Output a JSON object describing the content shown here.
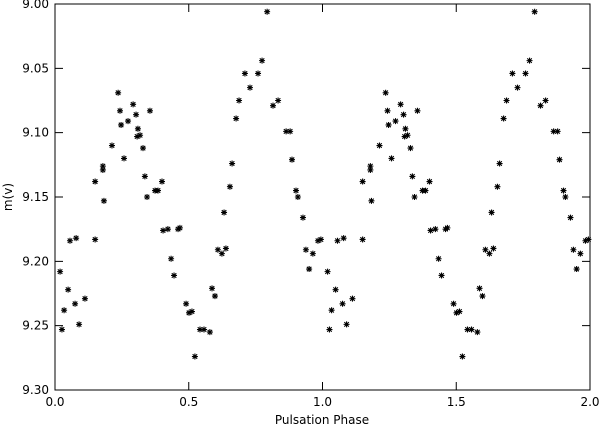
{
  "chart_data": {
    "type": "scatter",
    "x_label": "Pulsation Phase",
    "y_label": "m(v)",
    "color": "#000000",
    "xlim": [
      0,
      2
    ],
    "ylim": [
      9.3,
      9.0
    ],
    "xticks": [
      {
        "value": 0,
        "label": "0.0"
      },
      {
        "value": 0.5,
        "label": "0.5"
      },
      {
        "value": 1,
        "label": "1.0"
      },
      {
        "value": 1.5,
        "label": "1.5"
      },
      {
        "value": 2,
        "label": "2.0"
      }
    ],
    "yticks": [
      {
        "value": 9.0,
        "label": "9.00"
      },
      {
        "value": 9.05,
        "label": "9.05"
      },
      {
        "value": 9.1,
        "label": "9.10"
      },
      {
        "value": 9.15,
        "label": "9.15"
      },
      {
        "value": 9.2,
        "label": "9.20"
      },
      {
        "value": 9.25,
        "label": "9.25"
      },
      {
        "value": 9.3,
        "label": "9.30"
      }
    ],
    "x": [
      0.019,
      0.026,
      0.034,
      0.049,
      0.056,
      0.075,
      0.079,
      0.09,
      0.112,
      0.15,
      0.15,
      0.179,
      0.183,
      0.179,
      0.213,
      0.236,
      0.243,
      0.247,
      0.258,
      0.273,
      0.292,
      0.303,
      0.307,
      0.31,
      0.318,
      0.329,
      0.336,
      0.344,
      0.355,
      0.374,
      0.385,
      0.4,
      0.404,
      0.422,
      0.434,
      0.445,
      0.46,
      0.467,
      0.49,
      0.501,
      0.512,
      0.523,
      0.542,
      0.557,
      0.587,
      0.598,
      0.579,
      0.609,
      0.624,
      0.639,
      0.632,
      0.654,
      0.662,
      0.677,
      0.688,
      0.71,
      0.729,
      0.759,
      0.774,
      0.793,
      0.815,
      0.834,
      0.864,
      0.879,
      0.886,
      0.901,
      0.908,
      0.927,
      0.938,
      0.95,
      0.964,
      0.983,
      0.994,
      1.019,
      1.026,
      1.034,
      1.049,
      1.056,
      1.075,
      1.079,
      1.09,
      1.112,
      1.15,
      1.15,
      1.179,
      1.183,
      1.179,
      1.213,
      1.236,
      1.243,
      1.247,
      1.258,
      1.273,
      1.292,
      1.303,
      1.307,
      1.31,
      1.318,
      1.329,
      1.336,
      1.344,
      1.355,
      1.374,
      1.385,
      1.4,
      1.404,
      1.422,
      1.434,
      1.445,
      1.46,
      1.467,
      1.49,
      1.501,
      1.512,
      1.523,
      1.542,
      1.557,
      1.587,
      1.598,
      1.579,
      1.609,
      1.624,
      1.639,
      1.632,
      1.654,
      1.662,
      1.677,
      1.688,
      1.71,
      1.729,
      1.759,
      1.774,
      1.793,
      1.815,
      1.834,
      1.864,
      1.879,
      1.886,
      1.901,
      1.908,
      1.927,
      1.938,
      1.95,
      1.964,
      1.983,
      1.994
    ],
    "values": [
      9.208,
      9.253,
      9.238,
      9.222,
      9.184,
      9.233,
      9.182,
      9.249,
      9.229,
      9.183,
      9.138,
      9.126,
      9.153,
      9.129,
      9.11,
      9.069,
      9.083,
      9.094,
      9.12,
      9.091,
      9.078,
      9.086,
      9.103,
      9.097,
      9.102,
      9.112,
      9.134,
      9.15,
      9.083,
      9.145,
      9.145,
      9.138,
      9.176,
      9.175,
      9.198,
      9.211,
      9.175,
      9.174,
      9.233,
      9.24,
      9.239,
      9.274,
      9.253,
      9.253,
      9.221,
      9.227,
      9.255,
      9.191,
      9.194,
      9.19,
      9.162,
      9.142,
      9.124,
      9.089,
      9.075,
      9.054,
      9.065,
      9.054,
      9.044,
      9.006,
      9.079,
      9.075,
      9.099,
      9.099,
      9.121,
      9.145,
      9.15,
      9.166,
      9.191,
      9.206,
      9.194,
      9.184,
      9.183,
      9.208,
      9.253,
      9.238,
      9.222,
      9.184,
      9.233,
      9.182,
      9.249,
      9.229,
      9.183,
      9.138,
      9.126,
      9.153,
      9.129,
      9.11,
      9.069,
      9.083,
      9.094,
      9.12,
      9.091,
      9.078,
      9.086,
      9.103,
      9.097,
      9.102,
      9.112,
      9.134,
      9.15,
      9.083,
      9.145,
      9.145,
      9.138,
      9.176,
      9.175,
      9.198,
      9.211,
      9.175,
      9.174,
      9.233,
      9.24,
      9.239,
      9.274,
      9.253,
      9.253,
      9.221,
      9.227,
      9.255,
      9.191,
      9.194,
      9.19,
      9.162,
      9.142,
      9.124,
      9.089,
      9.075,
      9.054,
      9.065,
      9.054,
      9.044,
      9.006,
      9.079,
      9.075,
      9.099,
      9.099,
      9.121,
      9.145,
      9.15,
      9.166,
      9.191,
      9.206,
      9.194,
      9.184,
      9.183
    ]
  }
}
